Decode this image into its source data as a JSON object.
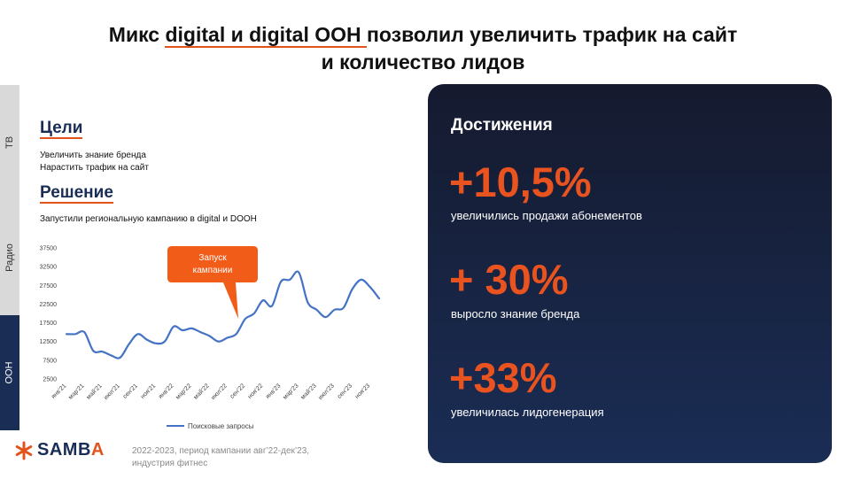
{
  "title": {
    "part1": "Микс ",
    "underlined": "digital и digital OOH ",
    "part2": "позволил увеличить трафик на сайт",
    "line2": "и количество лидов"
  },
  "side_tabs": [
    "ТВ",
    "Радио",
    "OOH"
  ],
  "goals": {
    "heading": "Цели",
    "items": [
      "Увеличить знание бренда",
      "Нарастить трафик на сайт"
    ]
  },
  "solution": {
    "heading": "Решение",
    "text": "Запустили региональную кампанию в digital и DOOH"
  },
  "callout": {
    "line1": "Запуск",
    "line2": "кампании"
  },
  "chart_data": {
    "type": "line",
    "title": "",
    "xlabel": "",
    "ylabel": "",
    "ylim": [
      2500,
      37500
    ],
    "yticks": [
      37500,
      32500,
      27500,
      22500,
      17500,
      12500,
      7500,
      2500
    ],
    "x_tick_labels": [
      "янв'21",
      "мар'21",
      "май'21",
      "июл'21",
      "сен'21",
      "ноя'21",
      "янв'22",
      "мар'22",
      "май'22",
      "июл'22",
      "сен'22",
      "ноя'22",
      "янв'23",
      "мар'23",
      "май'23",
      "июл'23",
      "сен'23",
      "ноя'23"
    ],
    "x": [
      "янв'21",
      "фев'21",
      "мар'21",
      "апр'21",
      "май'21",
      "июн'21",
      "июл'21",
      "авг'21",
      "сен'21",
      "окт'21",
      "ноя'21",
      "дек'21",
      "янв'22",
      "фев'22",
      "мар'22",
      "апр'22",
      "май'22",
      "июн'22",
      "июл'22",
      "авг'22",
      "сен'22",
      "окт'22",
      "ноя'22",
      "дек'22",
      "янв'23",
      "фев'23",
      "мар'23",
      "апр'23",
      "май'23",
      "июн'23",
      "июл'23",
      "авг'23",
      "сен'23",
      "окт'23",
      "ноя'23",
      "дек'23"
    ],
    "series": [
      {
        "name": "Поисковые запросы",
        "color": "#4472c4",
        "values": [
          14500,
          14500,
          15000,
          10000,
          9800,
          8800,
          8200,
          11800,
          14500,
          13000,
          12000,
          12500,
          16500,
          15500,
          16000,
          15000,
          14000,
          12500,
          13500,
          14500,
          18500,
          20000,
          23500,
          22000,
          28500,
          29000,
          31000,
          23000,
          21000,
          19000,
          21000,
          21500,
          26500,
          29000,
          27000,
          24000
        ]
      }
    ],
    "legend": "bottom"
  },
  "logo": {
    "word_start": "SAMB",
    "word_end": "A",
    "color": "#e2531c"
  },
  "footnote": {
    "line1": "2022-2023, период кампании авг’22-дек’23,",
    "line2": "индустрия фитнес"
  },
  "achievements": {
    "title": "Достижения",
    "items": [
      {
        "value": "+10,5%",
        "label": "увеличились продажи абонементов"
      },
      {
        "value": "+ 30%",
        "label": "выросло знание бренда"
      },
      {
        "value": "+33%",
        "label": "увеличилась лидогенерация"
      }
    ]
  }
}
